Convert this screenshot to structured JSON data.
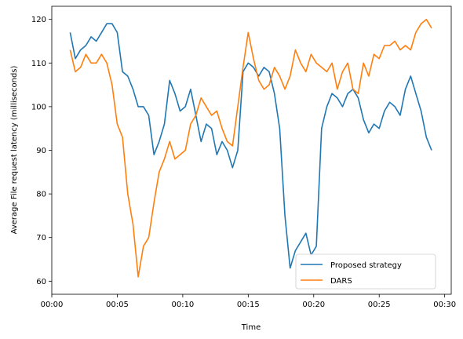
{
  "chart_data": {
    "type": "line",
    "title": "",
    "xlabel": "Time",
    "ylabel": "Average File request latency (milliseconds)",
    "xlim": [
      0,
      30.5
    ],
    "ylim": [
      57,
      123
    ],
    "x_ticks": [
      0,
      5,
      10,
      15,
      20,
      25,
      30
    ],
    "x_tick_labels": [
      "00:00",
      "00:05",
      "00:10",
      "00:15",
      "00:20",
      "00:25",
      "00:30"
    ],
    "y_ticks": [
      60,
      70,
      80,
      90,
      100,
      110,
      120
    ],
    "y_tick_labels": [
      "60",
      "70",
      "80",
      "90",
      "100",
      "110",
      "120"
    ],
    "grid": false,
    "legend_position": "lower-right",
    "series": [
      {
        "name": "Proposed strategy",
        "color": "#1f77b4",
        "x": [
          1.4,
          1.8,
          2.2,
          2.6,
          3.0,
          3.4,
          3.8,
          4.2,
          4.6,
          5.0,
          5.4,
          5.8,
          6.2,
          6.6,
          7.0,
          7.4,
          7.8,
          8.2,
          8.6,
          9.0,
          9.4,
          9.8,
          10.2,
          10.6,
          11.0,
          11.4,
          11.8,
          12.2,
          12.6,
          13.0,
          13.4,
          13.8,
          14.2,
          14.6,
          15.0,
          15.4,
          15.8,
          16.2,
          16.6,
          17.0,
          17.4,
          17.8,
          18.2,
          18.6,
          19.0,
          19.4,
          19.8,
          20.2,
          20.6,
          21.0,
          21.4,
          21.8,
          22.2,
          22.6,
          23.0,
          23.4,
          23.8,
          24.2,
          24.6,
          25.0,
          25.4,
          25.8,
          26.2,
          26.6,
          27.0,
          27.4,
          27.8,
          28.2,
          28.6,
          29.0
        ],
        "values": [
          117,
          111,
          113,
          114,
          116,
          115,
          117,
          119,
          119,
          117,
          108,
          107,
          104,
          100,
          100,
          98,
          89,
          92,
          96,
          106,
          103,
          99,
          100,
          104,
          98,
          92,
          96,
          95,
          89,
          92,
          90,
          86,
          90,
          108,
          110,
          109,
          107,
          109,
          108,
          103,
          95,
          75,
          63,
          67,
          69,
          71,
          66,
          68,
          95,
          100,
          103,
          102,
          100,
          103,
          104,
          102,
          97,
          94,
          96,
          95,
          99,
          101,
          100,
          98,
          104,
          107,
          103,
          99,
          93,
          90
        ]
      },
      {
        "name": "DARS",
        "color": "#ff7f0e",
        "x": [
          1.4,
          1.8,
          2.2,
          2.6,
          3.0,
          3.4,
          3.8,
          4.2,
          4.6,
          5.0,
          5.4,
          5.8,
          6.2,
          6.6,
          7.0,
          7.4,
          7.8,
          8.2,
          8.6,
          9.0,
          9.4,
          9.8,
          10.2,
          10.6,
          11.0,
          11.4,
          11.8,
          12.2,
          12.6,
          13.0,
          13.4,
          13.8,
          14.2,
          14.6,
          15.0,
          15.4,
          15.8,
          16.2,
          16.6,
          17.0,
          17.4,
          17.8,
          18.2,
          18.6,
          19.0,
          19.4,
          19.8,
          20.2,
          20.6,
          21.0,
          21.4,
          21.8,
          22.2,
          22.6,
          23.0,
          23.4,
          23.8,
          24.2,
          24.6,
          25.0,
          25.4,
          25.8,
          26.2,
          26.6,
          27.0,
          27.4,
          27.8,
          28.2,
          28.6,
          29.0
        ],
        "values": [
          113,
          108,
          109,
          112,
          110,
          110,
          112,
          110,
          105,
          96,
          93,
          80,
          73,
          61,
          68,
          70,
          78,
          85,
          88,
          92,
          88,
          89,
          90,
          96,
          98,
          102,
          100,
          98,
          99,
          95,
          92,
          91,
          100,
          109,
          117,
          111,
          106,
          104,
          105,
          109,
          107,
          104,
          107,
          113,
          110,
          108,
          112,
          110,
          109,
          108,
          110,
          104,
          108,
          110,
          104,
          103,
          110,
          107,
          112,
          111,
          114,
          114,
          115,
          113,
          114,
          113,
          117,
          119,
          120,
          118
        ]
      }
    ]
  }
}
